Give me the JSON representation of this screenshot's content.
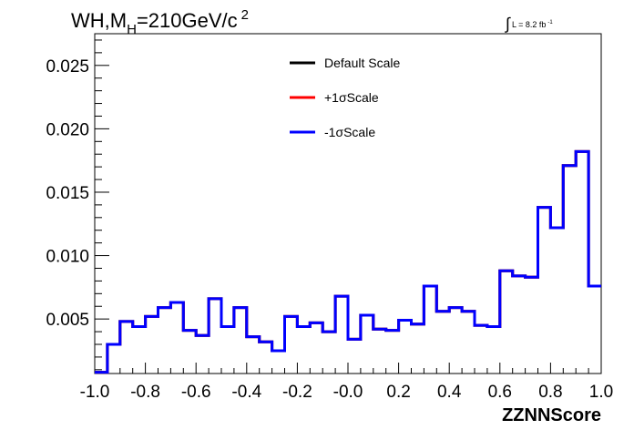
{
  "chart_data": {
    "type": "line",
    "title_parts": {
      "main": "WH,M",
      "sub": "H",
      "rest": "=210GeV/c",
      "sup": "2"
    },
    "lumi": {
      "symbol": "∫",
      "text": "L = 8.2 fb",
      "sup": "-1"
    },
    "xlabel": "ZZNNScore",
    "ylabel": "",
    "xlim": [
      -1.0,
      1.0
    ],
    "ylim": [
      0.0007,
      0.0275
    ],
    "x_ticks": [
      -1.0,
      -0.8,
      -0.6,
      -0.4,
      -0.2,
      0.0,
      0.2,
      0.4,
      0.6,
      0.8,
      1.0
    ],
    "x_tick_labels": [
      "-1.0",
      "-0.8",
      "-0.6",
      "-0.4",
      "-0.2",
      "-0.0",
      "0.2",
      "0.4",
      "0.6",
      "0.8",
      "1.0"
    ],
    "y_ticks": [
      0.005,
      0.01,
      0.015,
      0.02,
      0.025
    ],
    "y_tick_labels": [
      "0.005",
      "0.010",
      "0.015",
      "0.020",
      "0.025"
    ],
    "bin_edges": [
      -1.0,
      -0.95,
      -0.9,
      -0.85,
      -0.8,
      -0.75,
      -0.7,
      -0.65,
      -0.6,
      -0.55,
      -0.5,
      -0.45,
      -0.4,
      -0.35,
      -0.3,
      -0.25,
      -0.2,
      -0.15,
      -0.1,
      -0.05,
      0.0,
      0.05,
      0.1,
      0.15,
      0.2,
      0.25,
      0.3,
      0.35,
      0.4,
      0.45,
      0.5,
      0.55,
      0.6,
      0.65,
      0.7,
      0.75,
      0.8,
      0.85,
      0.9,
      0.95,
      1.0
    ],
    "series": [
      {
        "name": "Default Scale",
        "color": "#000000",
        "values": [
          0.0008,
          0.003,
          0.0048,
          0.0044,
          0.0052,
          0.0059,
          0.0063,
          0.0041,
          0.0037,
          0.0066,
          0.0044,
          0.0059,
          0.0036,
          0.0032,
          0.0025,
          0.0052,
          0.0044,
          0.0047,
          0.004,
          0.0068,
          0.0034,
          0.0053,
          0.0042,
          0.0041,
          0.0049,
          0.0046,
          0.0076,
          0.0056,
          0.0059,
          0.0056,
          0.0045,
          0.0044,
          0.0088,
          0.0084,
          0.0083,
          0.0138,
          0.0122,
          0.0171,
          0.0182,
          0.0076
        ]
      },
      {
        "name": "+1σScale",
        "color": "#ff0000",
        "values": [
          0.0008,
          0.003,
          0.0048,
          0.0044,
          0.0052,
          0.0059,
          0.0063,
          0.0041,
          0.0037,
          0.0066,
          0.0044,
          0.0059,
          0.0036,
          0.0032,
          0.0025,
          0.0052,
          0.0044,
          0.0047,
          0.004,
          0.0068,
          0.0034,
          0.0053,
          0.0042,
          0.0041,
          0.0049,
          0.0046,
          0.0076,
          0.0056,
          0.0059,
          0.0056,
          0.0045,
          0.0044,
          0.0088,
          0.0084,
          0.0083,
          0.0138,
          0.0122,
          0.0171,
          0.0182,
          0.0076
        ]
      },
      {
        "name": "-1σScale",
        "color": "#0000ff",
        "values": [
          0.0008,
          0.003,
          0.0048,
          0.0044,
          0.0052,
          0.0059,
          0.0063,
          0.0041,
          0.0037,
          0.0066,
          0.0044,
          0.0059,
          0.0036,
          0.0032,
          0.0025,
          0.0052,
          0.0044,
          0.0047,
          0.004,
          0.0068,
          0.0034,
          0.0053,
          0.0042,
          0.0041,
          0.0049,
          0.0046,
          0.0076,
          0.0056,
          0.0059,
          0.0056,
          0.0045,
          0.0044,
          0.0088,
          0.0084,
          0.0083,
          0.0138,
          0.0122,
          0.0171,
          0.0182,
          0.0076
        ]
      }
    ],
    "legend_position": "top-center",
    "grid": false
  }
}
